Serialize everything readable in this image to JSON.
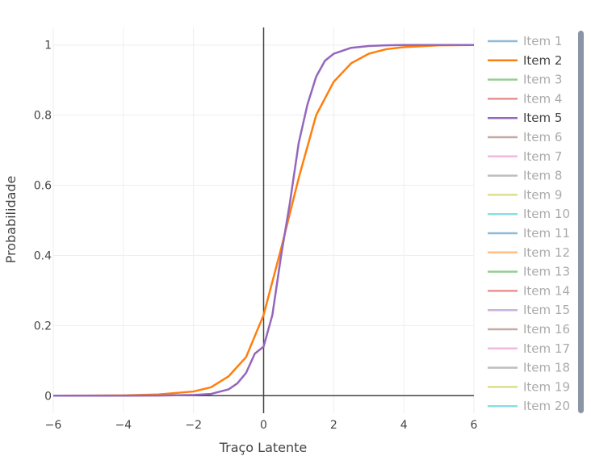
{
  "chart_data": {
    "type": "line",
    "title": "",
    "xlabel": "Traço Latente",
    "ylabel": "Probabilidade",
    "xlim": [
      -6,
      6
    ],
    "ylim": [
      -0.05,
      1.05
    ],
    "xticks": [
      -6,
      -4,
      -2,
      0,
      2,
      4,
      6
    ],
    "xtick_labels": [
      "−6",
      "−4",
      "−2",
      "0",
      "2",
      "4",
      "6"
    ],
    "yticks": [
      0,
      0.2,
      0.4,
      0.6,
      0.8,
      1
    ],
    "ytick_labels": [
      "0",
      "0.2",
      "0.4",
      "0.6",
      "0.8",
      "1"
    ],
    "grid": true,
    "legend_position": "right",
    "series": [
      {
        "name": "Item 1",
        "color": "#1f77b4",
        "visible": false
      },
      {
        "name": "Item 2",
        "color": "#ff7f0e",
        "visible": true,
        "x": [
          -6,
          -5,
          -4,
          -3,
          -2,
          -1.5,
          -1,
          -0.5,
          0,
          0.5,
          1,
          1.5,
          2,
          2.5,
          3,
          3.5,
          4,
          5,
          6
        ],
        "y": [
          0.0001,
          0.0004,
          0.001,
          0.0035,
          0.012,
          0.024,
          0.055,
          0.11,
          0.23,
          0.42,
          0.62,
          0.8,
          0.895,
          0.948,
          0.975,
          0.988,
          0.994,
          0.999,
          1.0
        ]
      },
      {
        "name": "Item 3",
        "color": "#2ca02c",
        "visible": false
      },
      {
        "name": "Item 4",
        "color": "#d62728",
        "visible": false
      },
      {
        "name": "Item 5",
        "color": "#9467bd",
        "visible": true,
        "x": [
          -6,
          -4,
          -3,
          -2,
          -1.5,
          -1,
          -0.75,
          -0.5,
          -0.25,
          0,
          0.25,
          0.5,
          0.75,
          1,
          1.25,
          1.5,
          1.75,
          2,
          2.5,
          3,
          3.5,
          4,
          5,
          6
        ],
        "y": [
          0.0,
          0.0,
          0.0003,
          0.002,
          0.005,
          0.018,
          0.035,
          0.065,
          0.12,
          0.14,
          0.23,
          0.4,
          0.55,
          0.72,
          0.83,
          0.91,
          0.955,
          0.975,
          0.992,
          0.997,
          0.999,
          1.0,
          1.0,
          1.0
        ]
      },
      {
        "name": "Item 6",
        "color": "#8c564b",
        "visible": false
      },
      {
        "name": "Item 7",
        "color": "#e377c2",
        "visible": false
      },
      {
        "name": "Item 8",
        "color": "#7f7f7f",
        "visible": false
      },
      {
        "name": "Item 9",
        "color": "#bcbd22",
        "visible": false
      },
      {
        "name": "Item 10",
        "color": "#17becf",
        "visible": false
      },
      {
        "name": "Item 11",
        "color": "#1f77b4",
        "visible": false
      },
      {
        "name": "Item 12",
        "color": "#ff7f0e",
        "visible": false
      },
      {
        "name": "Item 13",
        "color": "#2ca02c",
        "visible": false
      },
      {
        "name": "Item 14",
        "color": "#d62728",
        "visible": false
      },
      {
        "name": "Item 15",
        "color": "#9467bd",
        "visible": false
      },
      {
        "name": "Item 16",
        "color": "#8c564b",
        "visible": false
      },
      {
        "name": "Item 17",
        "color": "#e377c2",
        "visible": false
      },
      {
        "name": "Item 18",
        "color": "#7f7f7f",
        "visible": false
      },
      {
        "name": "Item 19",
        "color": "#bcbd22",
        "visible": false
      },
      {
        "name": "Item 20",
        "color": "#17becf",
        "visible": false
      }
    ]
  },
  "colors": {
    "grid": "#eeeeee",
    "zero_line": "#444444",
    "text": "#444444",
    "hidden_text": "#aaaaaa",
    "scrollbar": "#8a95a5"
  }
}
